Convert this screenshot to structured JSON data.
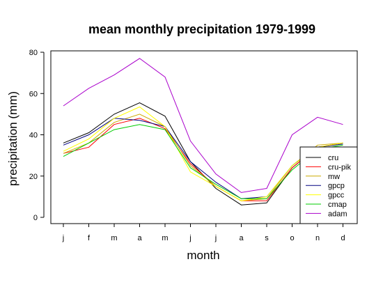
{
  "chart_data": {
    "type": "line",
    "title": "mean monthly precipitation 1979-1999",
    "xlabel": "month",
    "ylabel": "precipitation (mm)",
    "categories": [
      "j",
      "f",
      "m",
      "a",
      "m",
      "j",
      "j",
      "a",
      "s",
      "o",
      "n",
      "d"
    ],
    "ylim": [
      -3,
      81
    ],
    "yticks": [
      0,
      20,
      40,
      60,
      80
    ],
    "grid": false,
    "legend_position": "bottom-right",
    "series": [
      {
        "name": "cru",
        "color": "#000000",
        "values": [
          36,
          41,
          50,
          55.5,
          49,
          27,
          14,
          6,
          7,
          24,
          34,
          36
        ]
      },
      {
        "name": "cru-pik",
        "color": "#ff0000",
        "values": [
          31,
          34,
          45,
          48,
          43,
          26,
          15,
          8,
          8,
          24,
          34,
          36
        ]
      },
      {
        "name": "mw",
        "color": "#ccaa00",
        "values": [
          31,
          36,
          46,
          50,
          44,
          25,
          15,
          8,
          9,
          25,
          35,
          36
        ]
      },
      {
        "name": "gpcp",
        "color": "#000080",
        "values": [
          35,
          40,
          48,
          47,
          44,
          27,
          17,
          9,
          10,
          25,
          34,
          35.5
        ]
      },
      {
        "name": "gpcc",
        "color": "#ffff00",
        "values": [
          32,
          38,
          48,
          53.5,
          44,
          22,
          15,
          8,
          10,
          25,
          34,
          36
        ]
      },
      {
        "name": "cmap",
        "color": "#00cc00",
        "values": [
          29.5,
          36,
          42.5,
          45,
          42.5,
          24,
          16,
          9,
          9,
          23,
          33,
          35
        ]
      },
      {
        "name": "adam",
        "color": "#aa00cc",
        "values": [
          54,
          62.5,
          69,
          77,
          68,
          37,
          21,
          12,
          14,
          40,
          48.5,
          45
        ]
      }
    ]
  }
}
